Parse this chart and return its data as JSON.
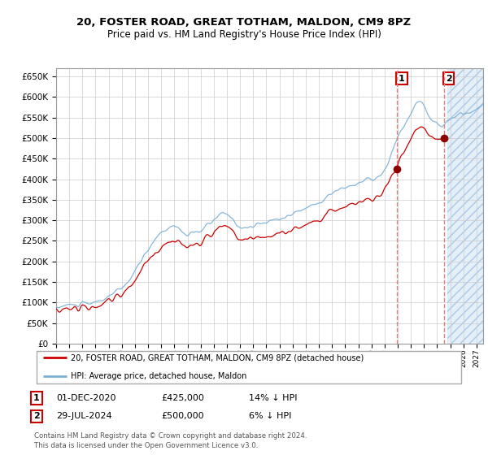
{
  "title": "20, FOSTER ROAD, GREAT TOTHAM, MALDON, CM9 8PZ",
  "subtitle": "Price paid vs. HM Land Registry's House Price Index (HPI)",
  "hpi_color": "#7aafd4",
  "price_color": "#cc0000",
  "dashed_color": "#e08080",
  "marker1_price": 425000,
  "marker2_price": 500000,
  "marker1_label": "01-DEC-2020",
  "marker2_label": "29-JUL-2024",
  "marker1_hpi_pct": "14% ↓ HPI",
  "marker2_hpi_pct": "6% ↓ HPI",
  "legend_line1": "20, FOSTER ROAD, GREAT TOTHAM, MALDON, CM9 8PZ (detached house)",
  "legend_line2": "HPI: Average price, detached house, Maldon",
  "footer": "Contains HM Land Registry data © Crown copyright and database right 2024.\nThis data is licensed under the Open Government Licence v3.0.",
  "background_color": "#ffffff",
  "grid_color": "#cccccc",
  "start_year": 1995,
  "end_year": 2027
}
